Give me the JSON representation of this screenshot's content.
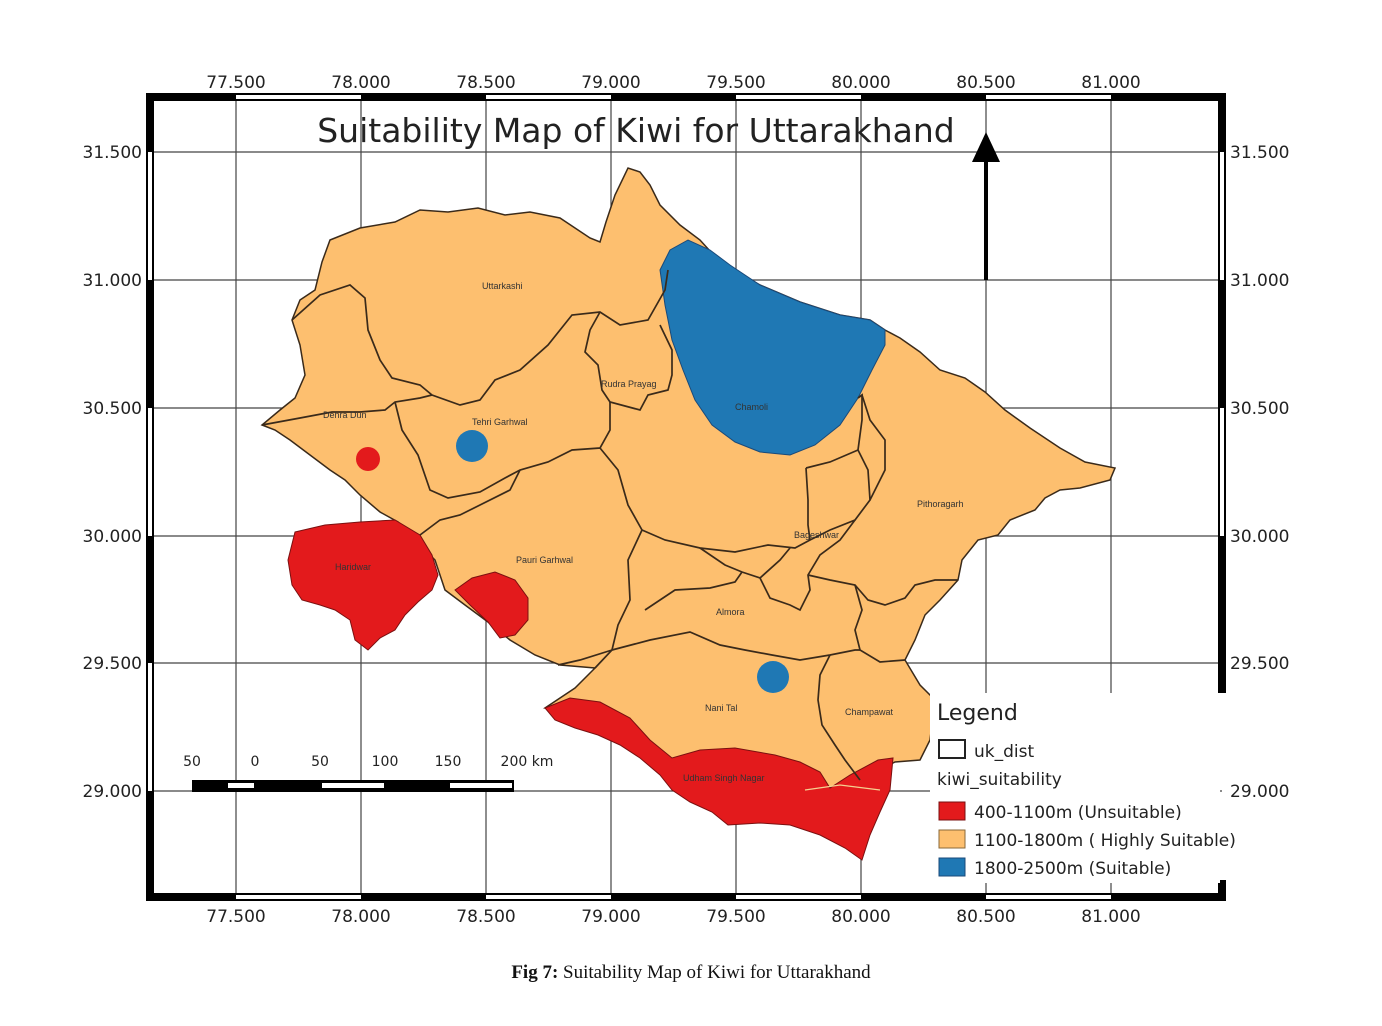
{
  "map": {
    "title": "Suitability Map of Kiwi for Uttarakhand",
    "lon_ticks": [
      "77.500",
      "78.000",
      "78.500",
      "79.000",
      "79.500",
      "80.000",
      "80.500",
      "81.000"
    ],
    "lat_ticks": [
      "31.500",
      "31.000",
      "30.500",
      "30.000",
      "29.500",
      "29.000"
    ],
    "districts": [
      "Uttarkashi",
      "Dehra Dun",
      "Tehri Garhwal",
      "Rudra Prayag",
      "Chamoli",
      "Pithoragarh",
      "Bageshwar",
      "Haridwar",
      "Pauri Garhwal",
      "Almora",
      "Nani Tal",
      "Champawat",
      "Udham Singh Nagar"
    ],
    "colors": {
      "unsuitable": "#e31a1c",
      "highly_suitable": "#fdbf6f",
      "suitable": "#1f78b4",
      "boundary": "#3a2a1a"
    },
    "north_arrow_icon": "north-arrow-icon"
  },
  "scale_bar": {
    "labels": [
      "50",
      "0",
      "50",
      "100",
      "150",
      "200 km"
    ]
  },
  "legend": {
    "title": "Legend",
    "layer1": "uk_dist",
    "layer2": "kiwi_suitability",
    "items": [
      "400-1100m (Unsuitable)",
      "1100-1800m  ( Highly Suitable)",
      "1800-2500m  (Suitable)"
    ]
  },
  "caption": {
    "label": "Fig 7:",
    "text": " Suitability Map of Kiwi for Uttarakhand"
  }
}
